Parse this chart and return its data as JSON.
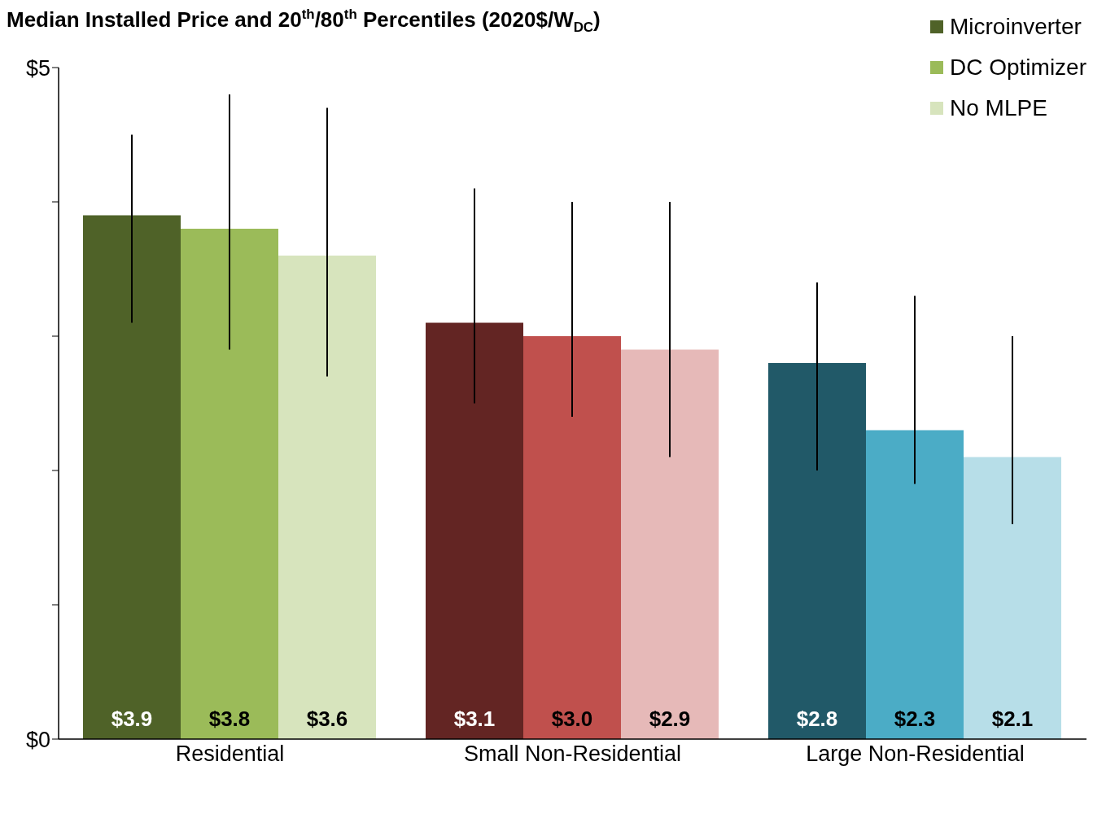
{
  "chart_data": {
    "type": "bar",
    "title": "Median Installed Price and 20$^{th}$/80$^{th}$ Percentiles (2020$/W$_{DC}$)",
    "categories": [
      "Residential",
      "Small Non-Residential",
      "Large Non-Residential"
    ],
    "series": [
      {
        "name": "Microinverter",
        "color": "#4f6228",
        "colors": [
          "#4f6228",
          "#632523",
          "#215968"
        ],
        "values": [
          3.9,
          3.1,
          2.8
        ],
        "value_labels": [
          "$3.9",
          "$3.1",
          "$2.8"
        ],
        "errors": [
          [
            3.1,
            4.5
          ],
          [
            2.5,
            4.1
          ],
          [
            2.0,
            3.4
          ]
        ]
      },
      {
        "name": "DC Optimizer",
        "color": "#9bbb59",
        "colors": [
          "#9bbb59",
          "#c0504d",
          "#4bacc6"
        ],
        "values": [
          3.8,
          3.0,
          2.3
        ],
        "value_labels": [
          "$3.8",
          "$3.0",
          "$2.3"
        ],
        "errors": [
          [
            2.9,
            4.8
          ],
          [
            2.4,
            4.0
          ],
          [
            1.9,
            3.3
          ]
        ]
      },
      {
        "name": "No MLPE",
        "color": "#d7e4bd",
        "colors": [
          "#d7e4bd",
          "#e6b9b8",
          "#b7dee8"
        ],
        "values": [
          3.6,
          2.9,
          2.1
        ],
        "value_labels": [
          "$3.6",
          "$2.9",
          "$2.1"
        ],
        "errors": [
          [
            2.7,
            4.7
          ],
          [
            2.1,
            4.0
          ],
          [
            1.6,
            3.0
          ]
        ]
      }
    ],
    "ylim": [
      0,
      5
    ],
    "yticks": [
      {
        "value": 0,
        "label": "$0"
      },
      {
        "value": 1,
        "label": null
      },
      {
        "value": 2,
        "label": null
      },
      {
        "value": 3,
        "label": null
      },
      {
        "value": 4,
        "label": null
      },
      {
        "value": 5,
        "label": "$5"
      }
    ],
    "legend": "top right"
  }
}
